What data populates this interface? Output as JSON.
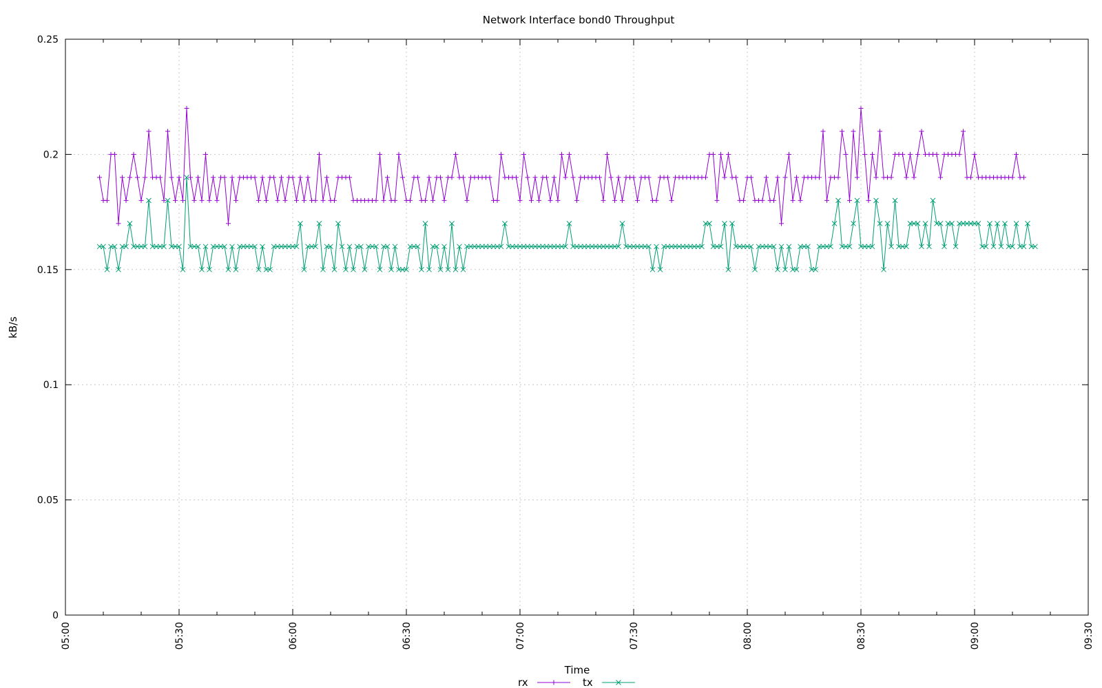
{
  "chart_data": {
    "type": "line",
    "title": "Network Interface bond0 Throughput",
    "xlabel": "Time",
    "ylabel": "kB/s",
    "x_range": [
      "05:00",
      "09:30"
    ],
    "ylim": [
      0,
      0.25
    ],
    "x_ticks": [
      "05:00",
      "05:30",
      "06:00",
      "06:30",
      "07:00",
      "07:30",
      "08:00",
      "08:30",
      "09:00",
      "09:30"
    ],
    "y_ticks": [
      "0",
      "0.05",
      "0.1",
      "0.15",
      "0.2",
      "0.25"
    ],
    "y_tick_values": [
      0,
      0.05,
      0.1,
      0.15,
      0.2,
      0.25
    ],
    "grid": true,
    "legend_position": "bottom-center",
    "sample_interval_minutes": 1,
    "x_start": "05:09",
    "series": [
      {
        "name": "rx",
        "color": "#9400d3",
        "marker": "plus",
        "values": [
          0.19,
          0.18,
          0.18,
          0.2,
          0.2,
          0.17,
          0.19,
          0.18,
          0.19,
          0.2,
          0.19,
          0.18,
          0.19,
          0.21,
          0.19,
          0.19,
          0.19,
          0.18,
          0.21,
          0.19,
          0.18,
          0.19,
          0.18,
          0.22,
          0.19,
          0.18,
          0.19,
          0.18,
          0.2,
          0.18,
          0.19,
          0.18,
          0.19,
          0.19,
          0.17,
          0.19,
          0.18,
          0.19,
          0.19,
          0.19,
          0.19,
          0.19,
          0.18,
          0.19,
          0.18,
          0.19,
          0.19,
          0.18,
          0.19,
          0.18,
          0.19,
          0.19,
          0.18,
          0.19,
          0.18,
          0.19,
          0.18,
          0.18,
          0.2,
          0.18,
          0.19,
          0.18,
          0.18,
          0.19,
          0.19,
          0.19,
          0.19,
          0.18,
          0.18,
          0.18,
          0.18,
          0.18,
          0.18,
          0.18,
          0.2,
          0.18,
          0.19,
          0.18,
          0.18,
          0.2,
          0.19,
          0.18,
          0.18,
          0.19,
          0.19,
          0.18,
          0.18,
          0.19,
          0.18,
          0.19,
          0.19,
          0.18,
          0.19,
          0.19,
          0.2,
          0.19,
          0.19,
          0.18,
          0.19,
          0.19,
          0.19,
          0.19,
          0.19,
          0.19,
          0.18,
          0.18,
          0.2,
          0.19,
          0.19,
          0.19,
          0.19,
          0.18,
          0.2,
          0.19,
          0.18,
          0.19,
          0.18,
          0.19,
          0.19,
          0.18,
          0.19,
          0.18,
          0.2,
          0.19,
          0.2,
          0.19,
          0.18,
          0.19,
          0.19,
          0.19,
          0.19,
          0.19,
          0.19,
          0.18,
          0.2,
          0.19,
          0.18,
          0.19,
          0.18,
          0.19,
          0.19,
          0.19,
          0.18,
          0.19,
          0.19,
          0.19,
          0.18,
          0.18,
          0.19,
          0.19,
          0.19,
          0.18,
          0.19,
          0.19,
          0.19,
          0.19,
          0.19,
          0.19,
          0.19,
          0.19,
          0.19,
          0.2,
          0.2,
          0.18,
          0.2,
          0.19,
          0.2,
          0.19,
          0.19,
          0.18,
          0.18,
          0.19,
          0.19,
          0.18,
          0.18,
          0.18,
          0.19,
          0.18,
          0.18,
          0.19,
          0.17,
          0.19,
          0.2,
          0.18,
          0.19,
          0.18,
          0.19,
          0.19,
          0.19,
          0.19,
          0.19,
          0.21,
          0.18,
          0.19,
          0.19,
          0.19,
          0.21,
          0.2,
          0.18,
          0.21,
          0.19,
          0.22,
          0.2,
          0.18,
          0.2,
          0.19,
          0.21,
          0.19,
          0.19,
          0.19,
          0.2,
          0.2,
          0.2,
          0.19,
          0.2,
          0.19,
          0.2,
          0.21,
          0.2,
          0.2,
          0.2,
          0.2,
          0.19,
          0.2,
          0.2,
          0.2,
          0.2,
          0.2,
          0.21,
          0.19,
          0.19,
          0.2,
          0.19,
          0.19,
          0.19,
          0.19,
          0.19,
          0.19,
          0.19,
          0.19,
          0.19,
          0.19,
          0.2,
          0.19,
          0.19
        ]
      },
      {
        "name": "tx",
        "color": "#009e73",
        "marker": "cross",
        "values": [
          0.16,
          0.16,
          0.15,
          0.16,
          0.16,
          0.15,
          0.16,
          0.16,
          0.17,
          0.16,
          0.16,
          0.16,
          0.16,
          0.18,
          0.16,
          0.16,
          0.16,
          0.16,
          0.18,
          0.16,
          0.16,
          0.16,
          0.15,
          0.19,
          0.16,
          0.16,
          0.16,
          0.15,
          0.16,
          0.15,
          0.16,
          0.16,
          0.16,
          0.16,
          0.15,
          0.16,
          0.15,
          0.16,
          0.16,
          0.16,
          0.16,
          0.16,
          0.15,
          0.16,
          0.15,
          0.15,
          0.16,
          0.16,
          0.16,
          0.16,
          0.16,
          0.16,
          0.16,
          0.17,
          0.15,
          0.16,
          0.16,
          0.16,
          0.17,
          0.15,
          0.16,
          0.16,
          0.15,
          0.17,
          0.16,
          0.15,
          0.16,
          0.15,
          0.16,
          0.16,
          0.15,
          0.16,
          0.16,
          0.16,
          0.15,
          0.16,
          0.16,
          0.15,
          0.16,
          0.15,
          0.15,
          0.15,
          0.16,
          0.16,
          0.16,
          0.15,
          0.17,
          0.15,
          0.16,
          0.16,
          0.15,
          0.16,
          0.15,
          0.17,
          0.15,
          0.16,
          0.15,
          0.16,
          0.16,
          0.16,
          0.16,
          0.16,
          0.16,
          0.16,
          0.16,
          0.16,
          0.16,
          0.17,
          0.16,
          0.16,
          0.16,
          0.16,
          0.16,
          0.16,
          0.16,
          0.16,
          0.16,
          0.16,
          0.16,
          0.16,
          0.16,
          0.16,
          0.16,
          0.16,
          0.17,
          0.16,
          0.16,
          0.16,
          0.16,
          0.16,
          0.16,
          0.16,
          0.16,
          0.16,
          0.16,
          0.16,
          0.16,
          0.16,
          0.17,
          0.16,
          0.16,
          0.16,
          0.16,
          0.16,
          0.16,
          0.16,
          0.15,
          0.16,
          0.15,
          0.16,
          0.16,
          0.16,
          0.16,
          0.16,
          0.16,
          0.16,
          0.16,
          0.16,
          0.16,
          0.16,
          0.17,
          0.17,
          0.16,
          0.16,
          0.16,
          0.17,
          0.15,
          0.17,
          0.16,
          0.16,
          0.16,
          0.16,
          0.16,
          0.15,
          0.16,
          0.16,
          0.16,
          0.16,
          0.16,
          0.15,
          0.16,
          0.15,
          0.16,
          0.15,
          0.15,
          0.16,
          0.16,
          0.16,
          0.15,
          0.15,
          0.16,
          0.16,
          0.16,
          0.16,
          0.17,
          0.18,
          0.16,
          0.16,
          0.16,
          0.17,
          0.18,
          0.16,
          0.16,
          0.16,
          0.16,
          0.18,
          0.17,
          0.15,
          0.17,
          0.16,
          0.18,
          0.16,
          0.16,
          0.16,
          0.17,
          0.17,
          0.17,
          0.16,
          0.17,
          0.16,
          0.18,
          0.17,
          0.17,
          0.16,
          0.17,
          0.17,
          0.16,
          0.17,
          0.17,
          0.17,
          0.17,
          0.17,
          0.17,
          0.16,
          0.16,
          0.17,
          0.16,
          0.17,
          0.16,
          0.17,
          0.16,
          0.16,
          0.17,
          0.16,
          0.16,
          0.17,
          0.16,
          0.16
        ]
      }
    ]
  }
}
